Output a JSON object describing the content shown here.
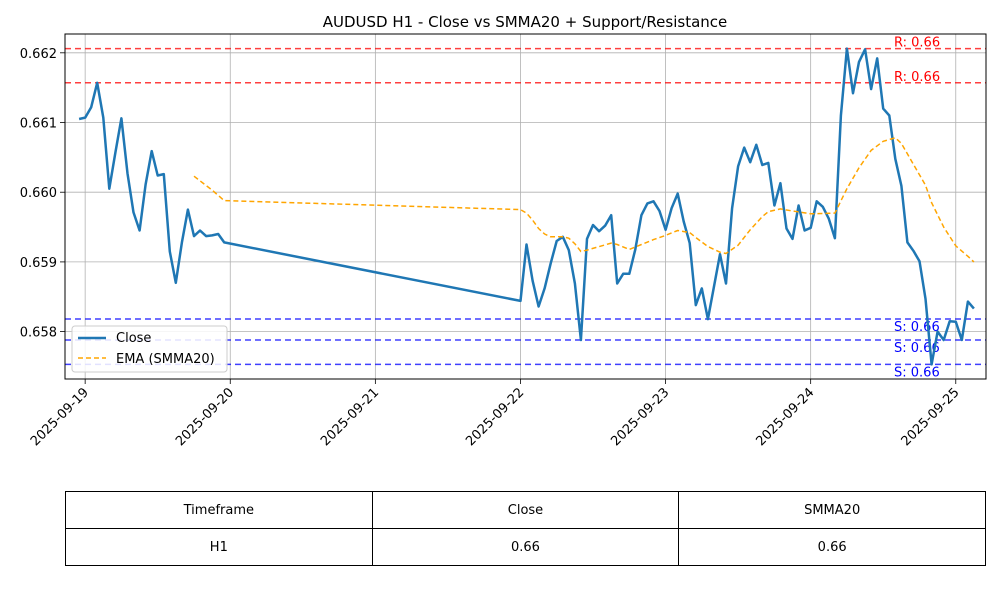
{
  "chart_data": {
    "type": "line",
    "title": "AUDUSD H1 - Close vs SMMA20 + Support/Resistance",
    "xlabel": "",
    "ylabel": "",
    "x_range": [
      "2025-09-18 20:40",
      "2025-09-25 05:00"
    ],
    "ylim": [
      0.65732,
      0.66227
    ],
    "x_ticks": [
      "2025-09-19",
      "2025-09-20",
      "2025-09-21",
      "2025-09-22",
      "2025-09-23",
      "2025-09-24",
      "2025-09-25"
    ],
    "y_ticks": [
      0.658,
      0.659,
      0.66,
      0.661,
      0.662
    ],
    "grid": true,
    "legend_position": "lower-left",
    "series": [
      {
        "name": "Close",
        "color": "#1f77b4",
        "style": "solid",
        "points": [
          [
            "2025-09-18 23:00",
            0.66105
          ],
          [
            "2025-09-19 00:00",
            0.66107
          ],
          [
            "2025-09-19 01:00",
            0.66122
          ],
          [
            "2025-09-19 02:00",
            0.66157
          ],
          [
            "2025-09-19 03:00",
            0.66107
          ],
          [
            "2025-09-19 04:00",
            0.66005
          ],
          [
            "2025-09-19 05:00",
            0.66057
          ],
          [
            "2025-09-19 06:00",
            0.66106
          ],
          [
            "2025-09-19 07:00",
            0.66027
          ],
          [
            "2025-09-19 08:00",
            0.65971
          ],
          [
            "2025-09-19 09:00",
            0.65945
          ],
          [
            "2025-09-19 10:00",
            0.66011
          ],
          [
            "2025-09-19 11:00",
            0.66059
          ],
          [
            "2025-09-19 12:00",
            0.66024
          ],
          [
            "2025-09-19 13:00",
            0.66026
          ],
          [
            "2025-09-19 14:00",
            0.65915
          ],
          [
            "2025-09-19 15:00",
            0.6587
          ],
          [
            "2025-09-19 16:00",
            0.65928
          ],
          [
            "2025-09-19 17:00",
            0.65975
          ],
          [
            "2025-09-19 18:00",
            0.65937
          ],
          [
            "2025-09-19 19:00",
            0.65945
          ],
          [
            "2025-09-19 20:00",
            0.65937
          ],
          [
            "2025-09-19 21:00",
            0.65938
          ],
          [
            "2025-09-19 22:00",
            0.6594
          ],
          [
            "2025-09-19 23:00",
            0.65928
          ],
          [
            "2025-09-22 00:00",
            0.65844
          ],
          [
            "2025-09-22 01:00",
            0.65925
          ],
          [
            "2025-09-22 02:00",
            0.65873
          ],
          [
            "2025-09-22 03:00",
            0.65836
          ],
          [
            "2025-09-22 04:00",
            0.65862
          ],
          [
            "2025-09-22 05:00",
            0.65898
          ],
          [
            "2025-09-22 06:00",
            0.6593
          ],
          [
            "2025-09-22 07:00",
            0.65936
          ],
          [
            "2025-09-22 08:00",
            0.65917
          ],
          [
            "2025-09-22 09:00",
            0.65869
          ],
          [
            "2025-09-22 10:00",
            0.65788
          ],
          [
            "2025-09-22 11:00",
            0.65933
          ],
          [
            "2025-09-22 12:00",
            0.65953
          ],
          [
            "2025-09-22 13:00",
            0.65944
          ],
          [
            "2025-09-22 14:00",
            0.65952
          ],
          [
            "2025-09-22 15:00",
            0.65967
          ],
          [
            "2025-09-22 16:00",
            0.65869
          ],
          [
            "2025-09-22 17:00",
            0.65883
          ],
          [
            "2025-09-22 18:00",
            0.65883
          ],
          [
            "2025-09-22 19:00",
            0.65918
          ],
          [
            "2025-09-22 20:00",
            0.65967
          ],
          [
            "2025-09-22 21:00",
            0.65984
          ],
          [
            "2025-09-22 22:00",
            0.65987
          ],
          [
            "2025-09-22 23:00",
            0.65973
          ],
          [
            "2025-09-23 00:00",
            0.65946
          ],
          [
            "2025-09-23 01:00",
            0.65977
          ],
          [
            "2025-09-23 02:00",
            0.65998
          ],
          [
            "2025-09-23 03:00",
            0.65958
          ],
          [
            "2025-09-23 04:00",
            0.65927
          ],
          [
            "2025-09-23 05:00",
            0.65838
          ],
          [
            "2025-09-23 06:00",
            0.65862
          ],
          [
            "2025-09-23 07:00",
            0.65818
          ],
          [
            "2025-09-23 08:00",
            0.65864
          ],
          [
            "2025-09-23 09:00",
            0.65911
          ],
          [
            "2025-09-23 10:00",
            0.65869
          ],
          [
            "2025-09-23 11:00",
            0.65977
          ],
          [
            "2025-09-23 12:00",
            0.66037
          ],
          [
            "2025-09-23 13:00",
            0.66064
          ],
          [
            "2025-09-23 14:00",
            0.66043
          ],
          [
            "2025-09-23 15:00",
            0.66068
          ],
          [
            "2025-09-23 16:00",
            0.66039
          ],
          [
            "2025-09-23 17:00",
            0.66042
          ],
          [
            "2025-09-23 18:00",
            0.65981
          ],
          [
            "2025-09-23 19:00",
            0.66013
          ],
          [
            "2025-09-23 20:00",
            0.65948
          ],
          [
            "2025-09-23 21:00",
            0.65933
          ],
          [
            "2025-09-23 22:00",
            0.65981
          ],
          [
            "2025-09-23 23:00",
            0.65945
          ],
          [
            "2025-09-24 00:00",
            0.65949
          ],
          [
            "2025-09-24 01:00",
            0.65987
          ],
          [
            "2025-09-24 02:00",
            0.65979
          ],
          [
            "2025-09-24 03:00",
            0.65962
          ],
          [
            "2025-09-24 04:00",
            0.65934
          ],
          [
            "2025-09-24 05:00",
            0.6611
          ],
          [
            "2025-09-24 06:00",
            0.66206
          ],
          [
            "2025-09-24 07:00",
            0.66142
          ],
          [
            "2025-09-24 08:00",
            0.66187
          ],
          [
            "2025-09-24 09:00",
            0.66205
          ],
          [
            "2025-09-24 10:00",
            0.66148
          ],
          [
            "2025-09-24 11:00",
            0.66192
          ],
          [
            "2025-09-24 12:00",
            0.6612
          ],
          [
            "2025-09-24 13:00",
            0.6611
          ],
          [
            "2025-09-24 14:00",
            0.66048
          ],
          [
            "2025-09-24 15:00",
            0.66009
          ],
          [
            "2025-09-24 16:00",
            0.65928
          ],
          [
            "2025-09-24 17:00",
            0.65916
          ],
          [
            "2025-09-24 18:00",
            0.65901
          ],
          [
            "2025-09-24 19:00",
            0.65847
          ],
          [
            "2025-09-24 20:00",
            0.65753
          ],
          [
            "2025-09-24 21:00",
            0.658
          ],
          [
            "2025-09-24 22:00",
            0.65788
          ],
          [
            "2025-09-24 23:00",
            0.65815
          ],
          [
            "2025-09-25 00:00",
            0.65814
          ],
          [
            "2025-09-25 01:00",
            0.65788
          ],
          [
            "2025-09-25 02:00",
            0.65843
          ],
          [
            "2025-09-25 03:00",
            0.65833
          ]
        ]
      },
      {
        "name": "EMA (SMMA20)",
        "color": "#ffa500",
        "style": "dashed",
        "points": [
          [
            "2025-09-19 18:00",
            0.66023
          ],
          [
            "2025-09-19 21:00",
            0.66003
          ],
          [
            "2025-09-19 23:00",
            0.65988
          ],
          [
            "2025-09-22 00:00",
            0.65975
          ],
          [
            "2025-09-22 01:00",
            0.6597
          ],
          [
            "2025-09-22 02:00",
            0.6596
          ],
          [
            "2025-09-22 03:00",
            0.65948
          ],
          [
            "2025-09-22 04:00",
            0.6594
          ],
          [
            "2025-09-22 05:00",
            0.65936
          ],
          [
            "2025-09-22 07:00",
            0.65936
          ],
          [
            "2025-09-22 08:00",
            0.65934
          ],
          [
            "2025-09-22 09:00",
            0.65926
          ],
          [
            "2025-09-22 10:00",
            0.65915
          ],
          [
            "2025-09-22 11:00",
            0.65917
          ],
          [
            "2025-09-22 13:00",
            0.65922
          ],
          [
            "2025-09-22 15:00",
            0.65927
          ],
          [
            "2025-09-22 16:00",
            0.65925
          ],
          [
            "2025-09-22 18:00",
            0.65918
          ],
          [
            "2025-09-22 20:00",
            0.65925
          ],
          [
            "2025-09-22 22:00",
            0.65932
          ],
          [
            "2025-09-23 00:00",
            0.65938
          ],
          [
            "2025-09-23 02:00",
            0.65945
          ],
          [
            "2025-09-23 04:00",
            0.65942
          ],
          [
            "2025-09-23 05:00",
            0.65935
          ],
          [
            "2025-09-23 07:00",
            0.65922
          ],
          [
            "2025-09-23 09:00",
            0.65914
          ],
          [
            "2025-09-23 10:00",
            0.65912
          ],
          [
            "2025-09-23 12:00",
            0.65924
          ],
          [
            "2025-09-23 14:00",
            0.65946
          ],
          [
            "2025-09-23 16:00",
            0.65965
          ],
          [
            "2025-09-23 17:00",
            0.65972
          ],
          [
            "2025-09-23 19:00",
            0.65976
          ],
          [
            "2025-09-23 21:00",
            0.65973
          ],
          [
            "2025-09-24 00:00",
            0.65969
          ],
          [
            "2025-09-24 04:00",
            0.6597
          ],
          [
            "2025-09-24 06:00",
            0.66005
          ],
          [
            "2025-09-24 08:00",
            0.66035
          ],
          [
            "2025-09-24 10:00",
            0.6606
          ],
          [
            "2025-09-24 12:00",
            0.66073
          ],
          [
            "2025-09-24 14:00",
            0.66078
          ],
          [
            "2025-09-24 15:00",
            0.6607
          ],
          [
            "2025-09-24 17:00",
            0.6604
          ],
          [
            "2025-09-24 19:00",
            0.6601
          ],
          [
            "2025-09-24 20:00",
            0.65985
          ],
          [
            "2025-09-24 22:00",
            0.6595
          ],
          [
            "2025-09-25 00:00",
            0.65923
          ],
          [
            "2025-09-25 02:00",
            0.65908
          ],
          [
            "2025-09-25 03:00",
            0.659
          ]
        ]
      }
    ],
    "levels": [
      {
        "kind": "resistance",
        "value": 0.66206,
        "label": "R: 0.66",
        "color": "#ff0000"
      },
      {
        "kind": "resistance",
        "value": 0.66157,
        "label": "R: 0.66",
        "color": "#ff0000"
      },
      {
        "kind": "support",
        "value": 0.65818,
        "label": "S: 0.66",
        "color": "#0000ff"
      },
      {
        "kind": "support",
        "value": 0.65788,
        "label": "S: 0.66",
        "color": "#0000ff"
      },
      {
        "kind": "support",
        "value": 0.65753,
        "label": "S: 0.66",
        "color": "#0000ff"
      }
    ]
  },
  "table": {
    "headers": [
      "Timeframe",
      "Close",
      "SMMA20"
    ],
    "row": [
      "H1",
      "0.66",
      "0.66"
    ]
  }
}
